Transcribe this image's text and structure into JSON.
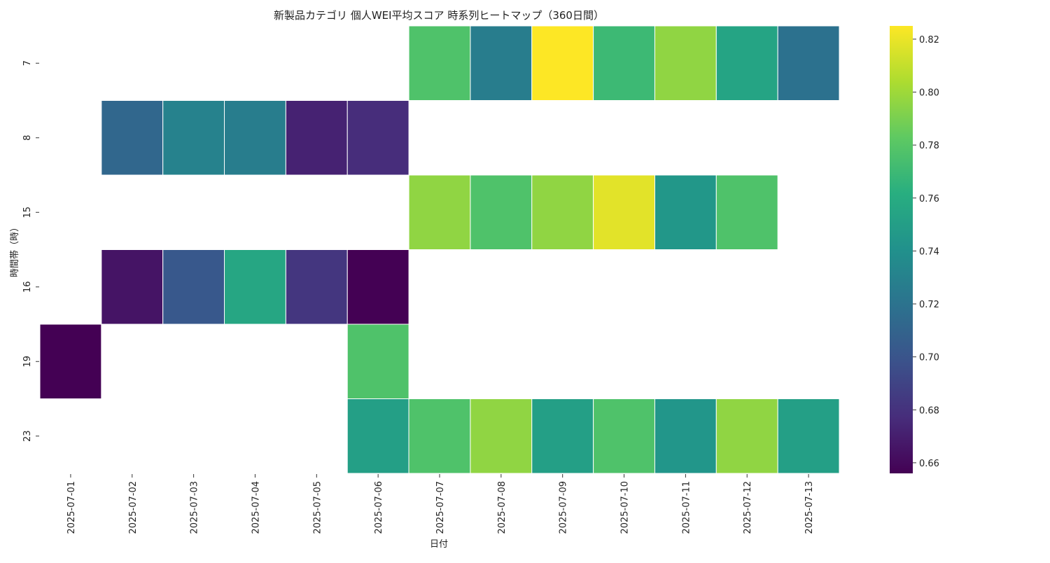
{
  "chart_data": {
    "type": "heatmap",
    "title": "新製品カテゴリ 個人WEI平均スコア 時系列ヒートマップ（360日間）",
    "xlabel": "日付",
    "ylabel": "時間帯（時）",
    "x_categories": [
      "2025-07-01",
      "2025-07-02",
      "2025-07-03",
      "2025-07-04",
      "2025-07-05",
      "2025-07-06",
      "2025-07-07",
      "2025-07-08",
      "2025-07-09",
      "2025-07-10",
      "2025-07-11",
      "2025-07-12",
      "2025-07-13"
    ],
    "y_categories": [
      "7",
      "8",
      "15",
      "16",
      "19",
      "23"
    ],
    "values": [
      [
        null,
        null,
        null,
        null,
        null,
        null,
        0.777,
        0.727,
        0.825,
        0.77,
        0.796,
        0.754,
        0.719
      ],
      [
        null,
        0.712,
        0.73,
        0.727,
        0.672,
        0.677,
        null,
        null,
        null,
        null,
        null,
        null,
        null
      ],
      [
        null,
        null,
        null,
        null,
        null,
        null,
        0.796,
        0.777,
        0.796,
        0.818,
        0.745,
        0.777,
        null
      ],
      [
        null,
        0.665,
        0.702,
        0.756,
        0.682,
        0.656,
        null,
        null,
        null,
        null,
        null,
        null,
        null
      ],
      [
        0.656,
        null,
        null,
        null,
        null,
        0.777,
        null,
        null,
        null,
        null,
        null,
        null,
        null
      ],
      [
        null,
        null,
        null,
        null,
        null,
        0.751,
        0.777,
        0.796,
        0.751,
        0.777,
        0.744,
        0.796,
        0.751
      ]
    ],
    "colormap": "viridis",
    "colorbar": {
      "range": [
        0.656,
        0.825
      ],
      "ticks": [
        "0.66",
        "0.68",
        "0.70",
        "0.72",
        "0.74",
        "0.76",
        "0.78",
        "0.80",
        "0.82"
      ]
    },
    "grid": false,
    "legend": "colorbar-right"
  }
}
